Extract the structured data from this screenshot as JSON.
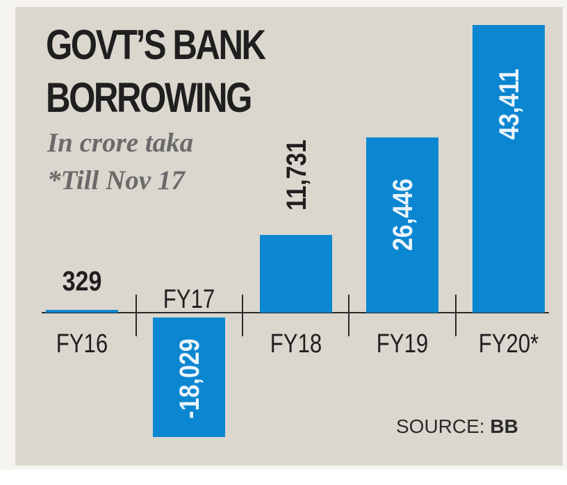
{
  "colors": {
    "bar": "#0b86d1",
    "background": "#dbd7cf",
    "text": "#1f1f1f",
    "subtitle": "#6a6a6a",
    "bar_label_light": "#eaf4fb"
  },
  "header": {
    "title_line1": "GOVT’S BANK",
    "title_line2": "BORROWING",
    "subtitle_line1": "In crore taka",
    "subtitle_line2": "*Till Nov 17"
  },
  "footer": {
    "source_label": "SOURCE:",
    "source_value": "BB"
  },
  "chart_data": {
    "type": "bar",
    "title": "GOVT’S BANK BORROWING",
    "subtitle": "In crore taka",
    "note": "*Till Nov 17",
    "categories": [
      "FY16",
      "FY17",
      "FY18",
      "FY19",
      "FY20*"
    ],
    "values": [
      329,
      -18029,
      11731,
      26446,
      43411
    ],
    "value_labels": [
      "329",
      "-18,029",
      "11,731",
      "26,446",
      "43,411"
    ],
    "source": "SOURCE: BB",
    "grid": false,
    "legend": "none"
  }
}
